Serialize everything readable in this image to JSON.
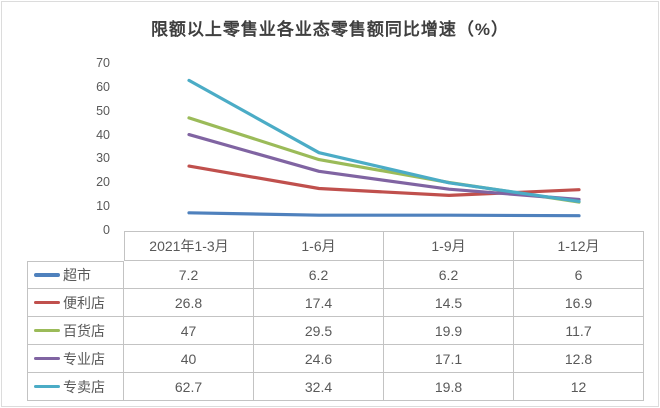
{
  "figure": {
    "background": "#ffffff",
    "border_color": "#dcdcdc"
  },
  "chart_data": {
    "type": "line",
    "title": "限额以上零售业各业态零售额同比增速（%）",
    "categories": [
      "2021年1-3月",
      "1-6月",
      "1-9月",
      "1-12月"
    ],
    "series": [
      {
        "name": "超市",
        "color": "#4F81BD",
        "values": [
          7.2,
          6.2,
          6.2,
          6
        ]
      },
      {
        "name": "便利店",
        "color": "#C0504D",
        "values": [
          26.8,
          17.4,
          14.5,
          16.9
        ]
      },
      {
        "name": "百货店",
        "color": "#9BBB59",
        "values": [
          47,
          29.5,
          19.9,
          11.7
        ]
      },
      {
        "name": "专业店",
        "color": "#8064A2",
        "values": [
          40,
          24.6,
          17.1,
          12.8
        ]
      },
      {
        "name": "专卖店",
        "color": "#4BACC6",
        "values": [
          62.7,
          32.4,
          19.8,
          12
        ]
      }
    ],
    "xlabel": "",
    "ylabel": "",
    "ylim": [
      0,
      70
    ],
    "yticks": [
      0,
      10,
      20,
      30,
      40,
      50,
      60,
      70
    ],
    "grid": false,
    "legend_position": "data-table-left",
    "text_color": "#595959",
    "title_color": "#3f3f3f",
    "table_border_color": "#c3c3c3"
  }
}
